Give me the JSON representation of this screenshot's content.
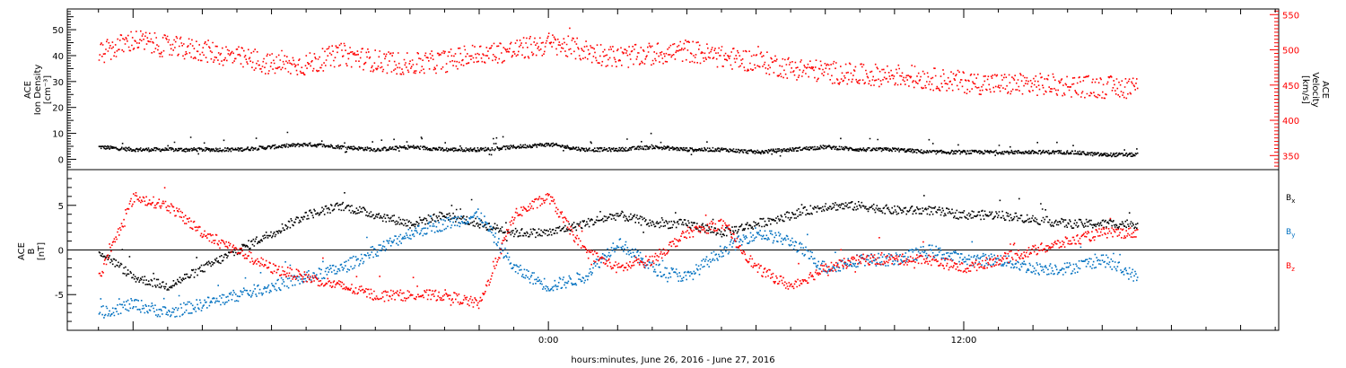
{
  "chart_data": [
    {
      "type": "scatter",
      "panel": "top",
      "ylabel": {
        "lines": [
          "ACE",
          "Ion Density",
          "[cm⁻³]"
        ]
      },
      "ylim": [
        -4,
        58
      ],
      "yticks": [
        0,
        10,
        20,
        30,
        40,
        50
      ],
      "y2label": {
        "lines": [
          "ACE",
          "Velocity",
          "[km/s]"
        ]
      },
      "y2lim": [
        330,
        558
      ],
      "y2ticks": [
        350,
        400,
        450,
        500,
        550
      ],
      "series": [
        {
          "axis": "left",
          "color": "#000000",
          "x": [
            -13.0,
            -12.0,
            -11.0,
            -10.0,
            -9.0,
            -8.0,
            -7.0,
            -6.0,
            -5.0,
            -4.0,
            -3.0,
            -2.0,
            -1.0,
            0.0,
            1.0,
            2.0,
            3.0,
            4.0,
            5.0,
            6.0,
            7.0,
            8.0,
            9.0,
            10.0,
            11.0,
            12.0,
            13.0,
            14.0,
            15.0,
            16.0,
            17.0
          ],
          "y": [
            5,
            4,
            4,
            4,
            4,
            5,
            6,
            5,
            4,
            5,
            4,
            4,
            5,
            6,
            4,
            4,
            5,
            4,
            4,
            3,
            4,
            5,
            4,
            4,
            3,
            3,
            3,
            3,
            3,
            2,
            2
          ]
        },
        {
          "axis": "right",
          "color": "#ff0000",
          "x": [
            -13.0,
            -12.0,
            -11.0,
            -10.0,
            -9.0,
            -8.0,
            -7.0,
            -6.0,
            -5.0,
            -4.0,
            -3.0,
            -2.0,
            -1.0,
            0.0,
            1.0,
            2.0,
            3.0,
            4.0,
            5.0,
            6.0,
            7.0,
            8.0,
            9.0,
            10.0,
            11.0,
            12.0,
            13.0,
            14.0,
            15.0,
            16.0,
            17.0
          ],
          "y": [
            495,
            515,
            505,
            500,
            490,
            480,
            480,
            495,
            485,
            480,
            485,
            495,
            500,
            510,
            500,
            490,
            495,
            500,
            490,
            485,
            475,
            470,
            465,
            465,
            460,
            455,
            452,
            452,
            450,
            448,
            448
          ]
        }
      ]
    },
    {
      "type": "scatter",
      "panel": "bottom",
      "ylabel": {
        "lines": [
          "ACE",
          "B",
          "[nT]"
        ]
      },
      "ylim": [
        -9,
        9
      ],
      "yticks": [
        -5,
        0,
        5
      ],
      "zero_line": true,
      "xlabel": "hours:minutes, June 26, 2016 - June 27, 2016",
      "xlim": [
        -13.9,
        21.1
      ],
      "x_tick_labels": [
        {
          "x": 0,
          "label": "0:00"
        },
        {
          "x": 12,
          "label": "12:00"
        }
      ],
      "series": [
        {
          "name": "Bx",
          "legend_main": "B",
          "legend_sub": "x",
          "color": "#000000",
          "x": [
            -13.0,
            -12.0,
            -11.0,
            -10.0,
            -9.0,
            -8.0,
            -7.0,
            -6.0,
            -5.0,
            -4.0,
            -3.0,
            -2.0,
            -1.0,
            0.0,
            1.0,
            2.0,
            3.0,
            4.0,
            5.0,
            6.0,
            7.0,
            8.0,
            9.0,
            10.0,
            11.0,
            12.0,
            13.0,
            14.0,
            15.0,
            16.0,
            17.0
          ],
          "y": [
            0,
            -3,
            -4,
            -2,
            0,
            2,
            4,
            5,
            4,
            3,
            4,
            3,
            2,
            2,
            3,
            4,
            3,
            3,
            2,
            3,
            4,
            5,
            5,
            4.5,
            4.5,
            4,
            4,
            3.5,
            3,
            3,
            3
          ]
        },
        {
          "name": "By",
          "legend_main": "B",
          "legend_sub": "y",
          "color": "#0070c0",
          "x": [
            -13.0,
            -12.0,
            -11.0,
            -10.0,
            -9.0,
            -8.0,
            -7.0,
            -6.0,
            -5.0,
            -4.0,
            -3.0,
            -2.0,
            -1.0,
            0.0,
            1.0,
            2.0,
            3.0,
            4.0,
            5.0,
            6.0,
            7.0,
            8.0,
            9.0,
            10.0,
            11.0,
            12.0,
            13.0,
            14.0,
            15.0,
            16.0,
            17.0
          ],
          "y": [
            -7,
            -6,
            -7,
            -6,
            -5,
            -4,
            -3,
            -2,
            0,
            2,
            3,
            4,
            -2,
            -4,
            -3,
            1,
            -2,
            -3,
            0,
            2,
            1,
            -2,
            -1,
            -1,
            0,
            -1,
            -1,
            -2,
            -2,
            -1,
            -3
          ]
        },
        {
          "name": "Bz",
          "legend_main": "B",
          "legend_sub": "z",
          "color": "#ff0000",
          "x": [
            -13.0,
            -12.0,
            -11.0,
            -10.0,
            -9.0,
            -8.0,
            -7.0,
            -6.0,
            -5.0,
            -4.0,
            -3.0,
            -2.0,
            -1.0,
            0.0,
            1.0,
            2.0,
            3.0,
            4.0,
            5.0,
            6.0,
            7.0,
            8.0,
            9.0,
            10.0,
            11.0,
            12.0,
            13.0,
            14.0,
            15.0,
            16.0,
            17.0
          ],
          "y": [
            -3,
            6,
            5,
            2,
            0,
            -2,
            -3,
            -4,
            -5,
            -5,
            -5,
            -6,
            4,
            6,
            0,
            -2,
            -1,
            2,
            3,
            -2,
            -4,
            -2,
            -1,
            -1,
            -1,
            -2,
            -1,
            0,
            1,
            2,
            2
          ]
        }
      ]
    }
  ]
}
